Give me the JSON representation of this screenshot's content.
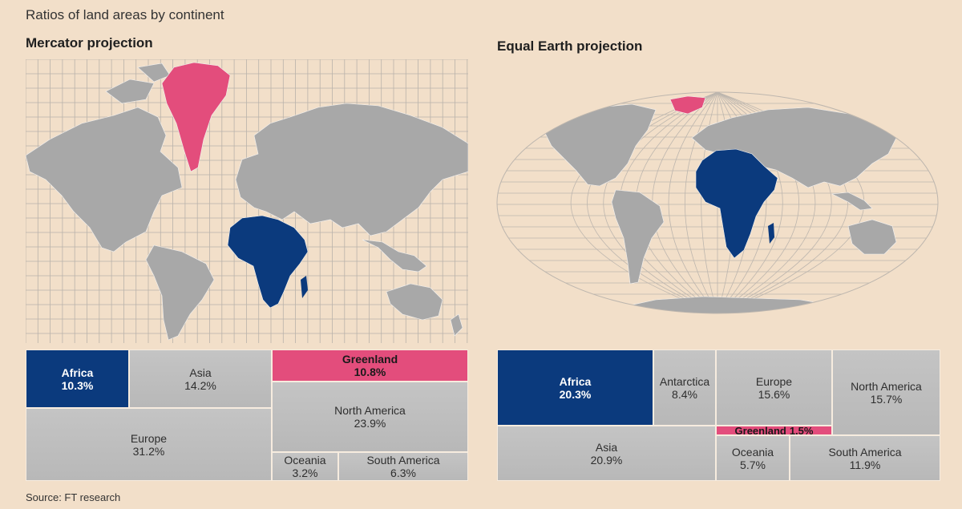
{
  "title": "Ratios of land areas by continent",
  "source": "Source: FT research",
  "colors": {
    "background": "#f2dfc9",
    "land": "#a8a8a8",
    "africa": "#0b3a7d",
    "greenland": "#e34d7c",
    "treemap_cell": "#bdbdbd"
  },
  "chart_data": [
    {
      "type": "treemap",
      "title": "Mercator projection",
      "items": [
        {
          "name": "Africa",
          "value": 10.3,
          "label": "10.3%"
        },
        {
          "name": "Asia",
          "value": 14.2,
          "label": "14.2%"
        },
        {
          "name": "Greenland",
          "value": 10.8,
          "label": "10.8%"
        },
        {
          "name": "North America",
          "value": 23.9,
          "label": "23.9%"
        },
        {
          "name": "Europe",
          "value": 31.2,
          "label": "31.2%"
        },
        {
          "name": "Oceania",
          "value": 3.2,
          "label": "3.2%"
        },
        {
          "name": "South America",
          "value": 6.3,
          "label": "6.3%"
        }
      ]
    },
    {
      "type": "treemap",
      "title": "Equal Earth projection",
      "items": [
        {
          "name": "Africa",
          "value": 20.3,
          "label": "20.3%"
        },
        {
          "name": "Antarctica",
          "value": 8.4,
          "label": "8.4%"
        },
        {
          "name": "Europe",
          "value": 15.6,
          "label": "15.6%"
        },
        {
          "name": "North America",
          "value": 15.7,
          "label": "15.7%"
        },
        {
          "name": "Greenland",
          "value": 1.5,
          "label": "1.5%"
        },
        {
          "name": "Asia",
          "value": 20.9,
          "label": "20.9%"
        },
        {
          "name": "Oceania",
          "value": 5.7,
          "label": "5.7%"
        },
        {
          "name": "South America",
          "value": 11.9,
          "label": "11.9%"
        }
      ]
    }
  ]
}
